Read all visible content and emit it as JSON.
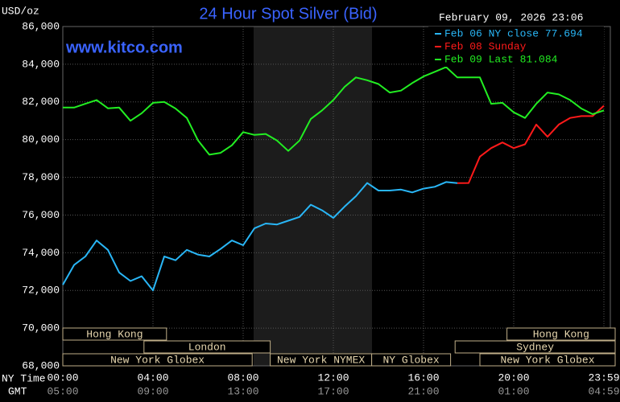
{
  "chart_data": {
    "type": "line",
    "title": "24 Hour Spot Silver (Bid)",
    "y_label": "USD/oz",
    "timestamp": "February 09, 2026 23:06",
    "watermark": "www.kitco.com",
    "x_label": "NY Time",
    "x2_label": "GMT",
    "x": [
      0,
      0.5,
      1,
      1.5,
      2,
      2.5,
      3,
      3.5,
      4,
      4.5,
      5,
      5.5,
      6,
      6.5,
      7,
      7.5,
      8,
      8.5,
      9,
      9.5,
      10,
      10.5,
      11,
      11.5,
      12,
      12.5,
      13,
      13.5,
      14,
      14.5,
      15,
      15.5,
      16,
      16.5,
      17,
      17.5,
      18,
      18.5,
      19,
      19.5,
      20,
      20.5,
      21,
      21.5,
      22,
      22.5,
      23,
      23.5,
      24
    ],
    "xlim": [
      0,
      24
    ],
    "xticks": [
      {
        "value": 0,
        "label": "00:00"
      },
      {
        "value": 4,
        "label": "04:00"
      },
      {
        "value": 8,
        "label": "08:00"
      },
      {
        "value": 12,
        "label": "12:00"
      },
      {
        "value": 16,
        "label": "16:00"
      },
      {
        "value": 20,
        "label": "20:00"
      },
      {
        "value": 24,
        "label": "23:59"
      }
    ],
    "x2ticks": [
      "05:00",
      "09:00",
      "13:00",
      "17:00",
      "21:00",
      "01:00",
      "04:59"
    ],
    "ylim": [
      68000,
      86000
    ],
    "yticks": [
      {
        "value": 68000,
        "label": "68,000"
      },
      {
        "value": 70000,
        "label": "70,000"
      },
      {
        "value": 72000,
        "label": "72,000"
      },
      {
        "value": 74000,
        "label": "74,000"
      },
      {
        "value": 76000,
        "label": "76,000"
      },
      {
        "value": 78000,
        "label": "78,000"
      },
      {
        "value": 80000,
        "label": "80,000"
      },
      {
        "value": 82000,
        "label": "82,000"
      },
      {
        "value": 84000,
        "label": "84,000"
      },
      {
        "value": 86000,
        "label": "86,000"
      }
    ],
    "grid": true,
    "legend": "top-right",
    "series": [
      {
        "name": "Feb 06 NY close 77.694",
        "color": "#29b6f6",
        "values": [
          72300,
          73350,
          73800,
          74650,
          74150,
          72950,
          72500,
          72750,
          72000,
          73800,
          73600,
          74150,
          73900,
          73800,
          74200,
          74650,
          74400,
          75300,
          75550,
          75500,
          75700,
          75900,
          76550,
          76250,
          75850,
          76450,
          77000,
          77700,
          77300,
          77300,
          77350,
          77200,
          77400,
          77500,
          77750,
          77694,
          null,
          null,
          null,
          null,
          null,
          null,
          null,
          null,
          null,
          null,
          null,
          null,
          null
        ]
      },
      {
        "name": "Feb 08 Sunday",
        "color": "#ff1a1a",
        "values": [
          null,
          null,
          null,
          null,
          null,
          null,
          null,
          null,
          null,
          null,
          null,
          null,
          null,
          null,
          null,
          null,
          null,
          null,
          null,
          null,
          null,
          null,
          null,
          null,
          null,
          null,
          null,
          null,
          null,
          null,
          null,
          null,
          null,
          null,
          null,
          77694,
          77700,
          79100,
          79550,
          79850,
          79550,
          79750,
          80800,
          80150,
          80800,
          81150,
          81250,
          81250,
          81800
        ]
      },
      {
        "name": "Feb 09 Last 81.084",
        "color": "#22ee22",
        "values": [
          81700,
          81700,
          81900,
          82100,
          81660,
          81700,
          81000,
          81400,
          81950,
          82000,
          81650,
          81150,
          79950,
          79200,
          79300,
          79700,
          80400,
          80250,
          80300,
          79950,
          79400,
          79950,
          81100,
          81550,
          82100,
          82800,
          83300,
          83150,
          82950,
          82500,
          82600,
          83000,
          83350,
          83600,
          83850,
          83300,
          83300,
          83300,
          81900,
          81950,
          81450,
          81150,
          81900,
          82500,
          82400,
          82100,
          81650,
          81350,
          81550
        ]
      }
    ],
    "sessions": [
      "Hong Kong",
      "London",
      "New York Globex",
      "New York NYMEX",
      "NY Globex",
      "Hong Kong",
      "Sydney",
      "New York Globex"
    ]
  }
}
